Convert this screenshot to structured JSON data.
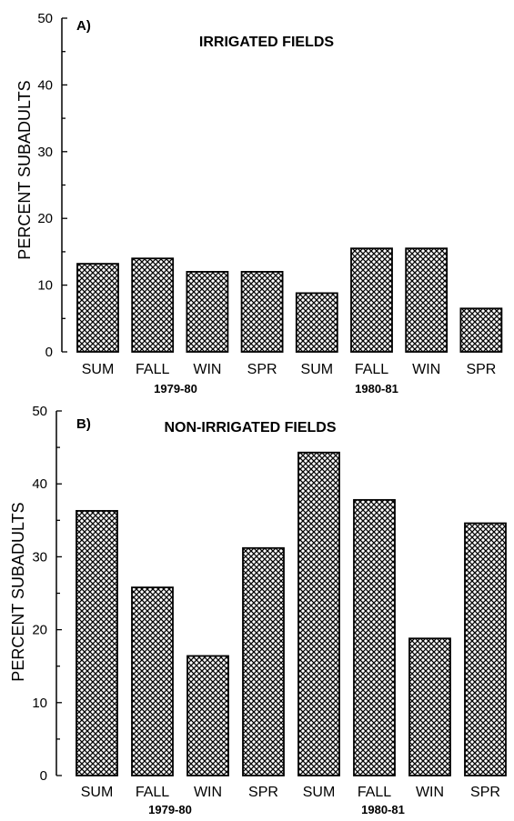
{
  "chart_data": [
    {
      "type": "bar",
      "panel_label": "A)",
      "title": "IRRIGATED FIELDS",
      "ylabel": "PERCENT SUBADULTS",
      "xlabel": "",
      "ylim": [
        0,
        50
      ],
      "yticks": [
        "0",
        "10",
        "20",
        "30",
        "40",
        "50"
      ],
      "categories": [
        "SUM",
        "FALL",
        "WIN",
        "SPR",
        "SUM",
        "FALL",
        "WIN",
        "SPR"
      ],
      "year_groups": [
        "1979-80",
        "1980-81"
      ],
      "values": [
        13.2,
        14.0,
        12.0,
        12.0,
        8.8,
        15.5,
        15.5,
        6.5
      ],
      "bar_fill": "crosshatch",
      "grid": false
    },
    {
      "type": "bar",
      "panel_label": "B)",
      "title": "NON-IRRIGATED FIELDS",
      "ylabel": "PERCENT SUBADULTS",
      "xlabel": "",
      "ylim": [
        0,
        50
      ],
      "yticks": [
        "0",
        "10",
        "20",
        "30",
        "40",
        "50"
      ],
      "categories": [
        "SUM",
        "FALL",
        "WIN",
        "SPR",
        "SUM",
        "FALL",
        "WIN",
        "SPR"
      ],
      "year_groups": [
        "1979-80",
        "1980-81"
      ],
      "values": [
        36.3,
        25.8,
        16.4,
        31.2,
        44.3,
        37.8,
        18.8,
        34.6
      ],
      "bar_fill": "crosshatch",
      "grid": false
    }
  ]
}
